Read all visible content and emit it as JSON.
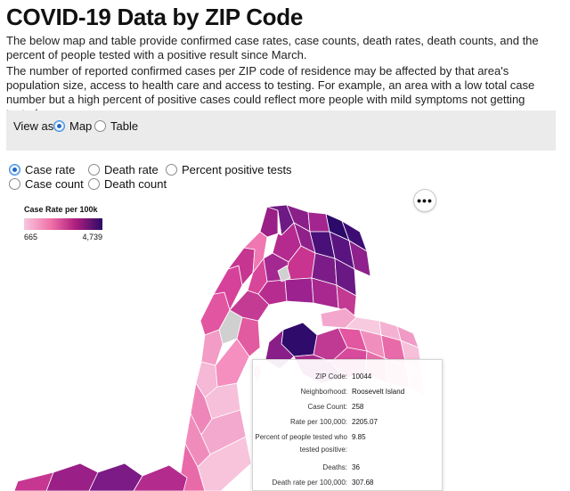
{
  "page": {
    "title": "COVID-19 Data by ZIP Code",
    "paragraph1": "The below map and table provide confirmed case rates, case counts, death rates, death counts, and the percent of people tested with a positive result since March.",
    "paragraph2": "The number of reported confirmed cases per ZIP code of residence may be affected by that area's population size, access to health care and access to testing. For example, an area with a low total case number but a high percent of positive cases could reflect more people with mild symptoms not getting tested."
  },
  "view": {
    "label": "View as:",
    "options": [
      {
        "label": "Map",
        "selected": true
      },
      {
        "label": "Table",
        "selected": false
      }
    ]
  },
  "metrics": {
    "options": [
      {
        "label": "Case rate",
        "selected": true
      },
      {
        "label": "Death rate",
        "selected": false
      },
      {
        "label": "Percent positive tests",
        "selected": false
      },
      {
        "label": "Case count",
        "selected": false
      },
      {
        "label": "Death count",
        "selected": false
      }
    ]
  },
  "more_button": {
    "label": "•••",
    "icon": "ellipsis-icon"
  },
  "legend": {
    "title": "Case Rate per 100k",
    "min": "665",
    "max": "4,739",
    "colors": [
      "#f7c6dd",
      "#ef6fa7",
      "#b01f7e",
      "#2c0a66"
    ]
  },
  "tooltip": {
    "rows": [
      {
        "key": "ZIP Code:",
        "value": "10044"
      },
      {
        "key": "Neighborhood:",
        "value": "Roosevelt Island"
      },
      {
        "key": "Case Count:",
        "value": "258"
      },
      {
        "key": "Rate per 100,000:",
        "value": "2205.07"
      },
      {
        "key": "Percent of people tested who tested positive:",
        "value": "9.85"
      },
      {
        "key": "Deaths:",
        "value": "36"
      },
      {
        "key": "Death rate per 100,000:",
        "value": "307.68"
      }
    ]
  },
  "colors": {
    "accent": "#1f66c9",
    "light": "#f7c6dd",
    "mid": "#e8529a",
    "dark": "#8d1a86",
    "darkest": "#2c0a66",
    "nodata": "#d0d0d0"
  }
}
